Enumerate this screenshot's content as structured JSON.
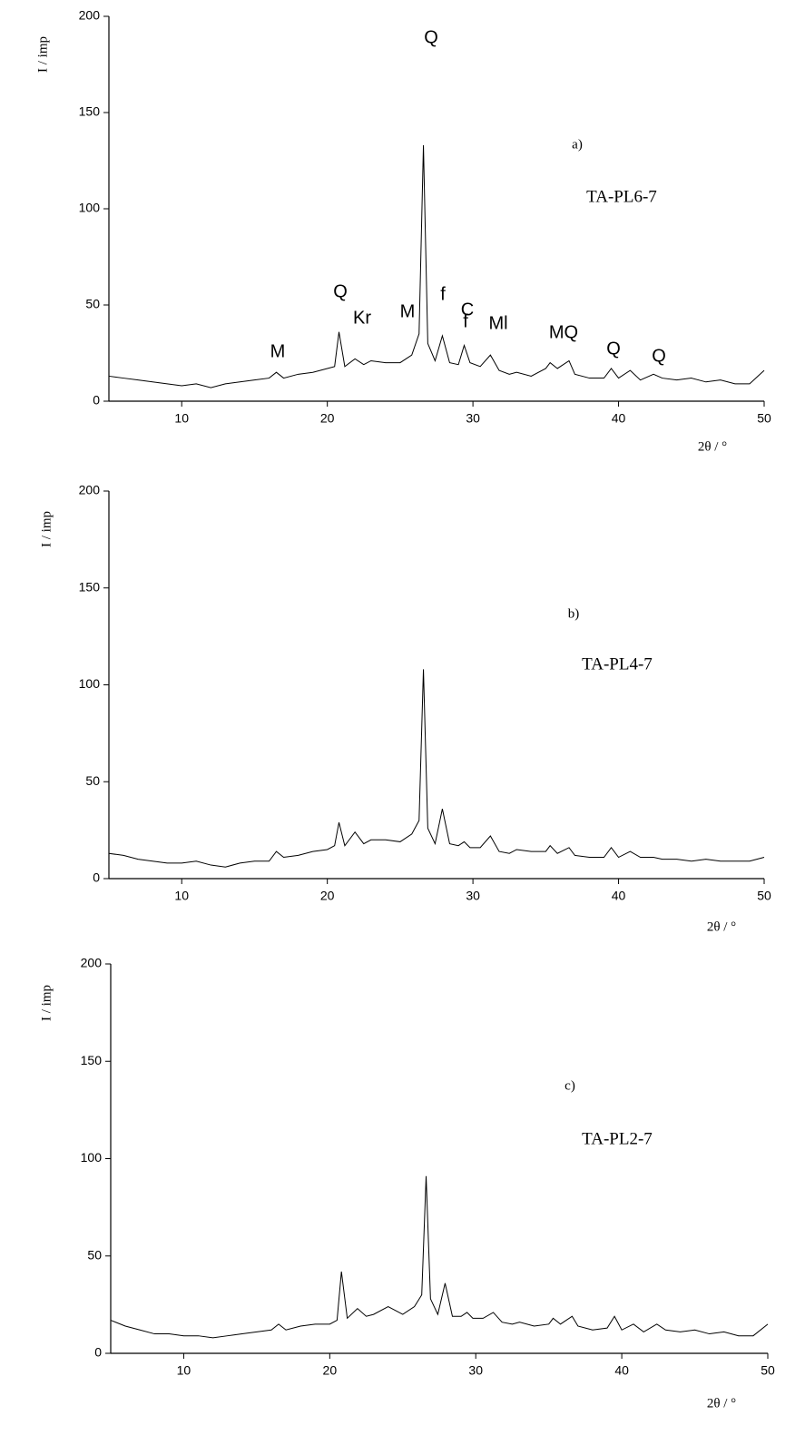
{
  "chart_data": [
    {
      "type": "line",
      "panel_label": "a)",
      "sample": "TA-PL6-7",
      "x_label": "2θ / °",
      "y_label": "I / imp",
      "color": "#000000",
      "annotations": [
        "Q",
        "M",
        "Q",
        "Kr",
        "M",
        "f",
        "C",
        "f",
        "Ml",
        "MQ",
        "Q",
        "Q"
      ],
      "xlim": [
        5,
        50
      ],
      "xticks": [
        10,
        20,
        30,
        40,
        50
      ],
      "ylim": [
        0,
        200
      ],
      "yticks": [
        0,
        50,
        100,
        150,
        200
      ],
      "x": [
        5,
        6,
        7,
        8,
        9,
        10,
        11,
        12,
        13,
        14,
        15,
        16,
        16.5,
        17,
        18,
        19,
        20,
        20.5,
        20.8,
        21.2,
        21.9,
        22.5,
        23,
        24,
        25,
        25.8,
        26.3,
        26.6,
        26.9,
        27.4,
        27.9,
        28.4,
        29,
        29.4,
        29.8,
        30.5,
        31.2,
        31.8,
        32.5,
        33,
        34,
        35,
        35.3,
        35.8,
        36.6,
        37,
        38,
        39,
        39.5,
        40,
        40.8,
        41.5,
        42.4,
        43,
        44,
        45,
        46,
        47,
        48,
        49,
        50
      ],
      "values": [
        13,
        12,
        11,
        10,
        9,
        8,
        9,
        7,
        9,
        10,
        11,
        12,
        15,
        12,
        14,
        15,
        17,
        18,
        36,
        18,
        22,
        19,
        21,
        20,
        20,
        24,
        35,
        133,
        30,
        21,
        34,
        20,
        19,
        29,
        20,
        18,
        24,
        16,
        14,
        15,
        13,
        17,
        20,
        17,
        21,
        14,
        12,
        12,
        17,
        12,
        16,
        11,
        14,
        12,
        11,
        12,
        10,
        11,
        9,
        9,
        16
      ]
    },
    {
      "type": "line",
      "panel_label": "b)",
      "sample": "TA-PL4-7",
      "x_label": "2θ / °",
      "y_label": "I / imp",
      "color": "#000000",
      "xlim": [
        5,
        50
      ],
      "xticks": [
        10,
        20,
        30,
        40,
        50
      ],
      "ylim": [
        0,
        200
      ],
      "yticks": [
        0,
        50,
        100,
        150,
        200
      ],
      "x": [
        5,
        6,
        7,
        8,
        9,
        10,
        11,
        12,
        13,
        14,
        15,
        16,
        16.5,
        17,
        18,
        19,
        20,
        20.5,
        20.8,
        21.2,
        21.9,
        22.5,
        23,
        24,
        25,
        25.8,
        26.3,
        26.6,
        26.9,
        27.4,
        27.9,
        28.4,
        29,
        29.4,
        29.8,
        30.5,
        31.2,
        31.8,
        32.5,
        33,
        34,
        35,
        35.3,
        35.8,
        36.6,
        37,
        38,
        39,
        39.5,
        40,
        40.8,
        41.5,
        42.4,
        43,
        44,
        45,
        46,
        47,
        48,
        49,
        50
      ],
      "values": [
        13,
        12,
        10,
        9,
        8,
        8,
        9,
        7,
        6,
        8,
        9,
        9,
        14,
        11,
        12,
        14,
        15,
        17,
        29,
        17,
        24,
        18,
        20,
        20,
        19,
        23,
        30,
        108,
        26,
        18,
        36,
        18,
        17,
        19,
        16,
        16,
        22,
        14,
        13,
        15,
        14,
        14,
        17,
        13,
        16,
        12,
        11,
        11,
        16,
        11,
        14,
        11,
        11,
        10,
        10,
        9,
        10,
        9,
        9,
        9,
        11
      ]
    },
    {
      "type": "line",
      "panel_label": "c)",
      "sample": "TA-PL2-7",
      "x_label": "2θ / °",
      "y_label": "I / imp",
      "color": "#000000",
      "xlim": [
        5,
        50
      ],
      "xticks": [
        10,
        20,
        30,
        40,
        50
      ],
      "ylim": [
        0,
        200
      ],
      "yticks": [
        0,
        50,
        100,
        150,
        200
      ],
      "x": [
        5,
        6,
        7,
        8,
        9,
        10,
        11,
        12,
        13,
        14,
        15,
        16,
        16.5,
        17,
        18,
        19,
        20,
        20.5,
        20.8,
        21.2,
        21.9,
        22.5,
        23,
        24,
        25,
        25.8,
        26.3,
        26.6,
        26.9,
        27.4,
        27.9,
        28.4,
        29,
        29.4,
        29.8,
        30.5,
        31.2,
        31.8,
        32.5,
        33,
        34,
        35,
        35.3,
        35.8,
        36.6,
        37,
        38,
        39,
        39.5,
        40,
        40.8,
        41.5,
        42.4,
        43,
        44,
        45,
        46,
        47,
        48,
        49,
        50
      ],
      "values": [
        17,
        14,
        12,
        10,
        10,
        9,
        9,
        8,
        9,
        10,
        11,
        12,
        15,
        12,
        14,
        15,
        15,
        17,
        42,
        18,
        23,
        19,
        20,
        24,
        20,
        24,
        30,
        91,
        28,
        20,
        36,
        19,
        19,
        21,
        18,
        18,
        21,
        16,
        15,
        16,
        14,
        15,
        18,
        15,
        19,
        14,
        12,
        13,
        19,
        12,
        15,
        11,
        15,
        12,
        11,
        12,
        10,
        11,
        9,
        9,
        15
      ]
    }
  ]
}
